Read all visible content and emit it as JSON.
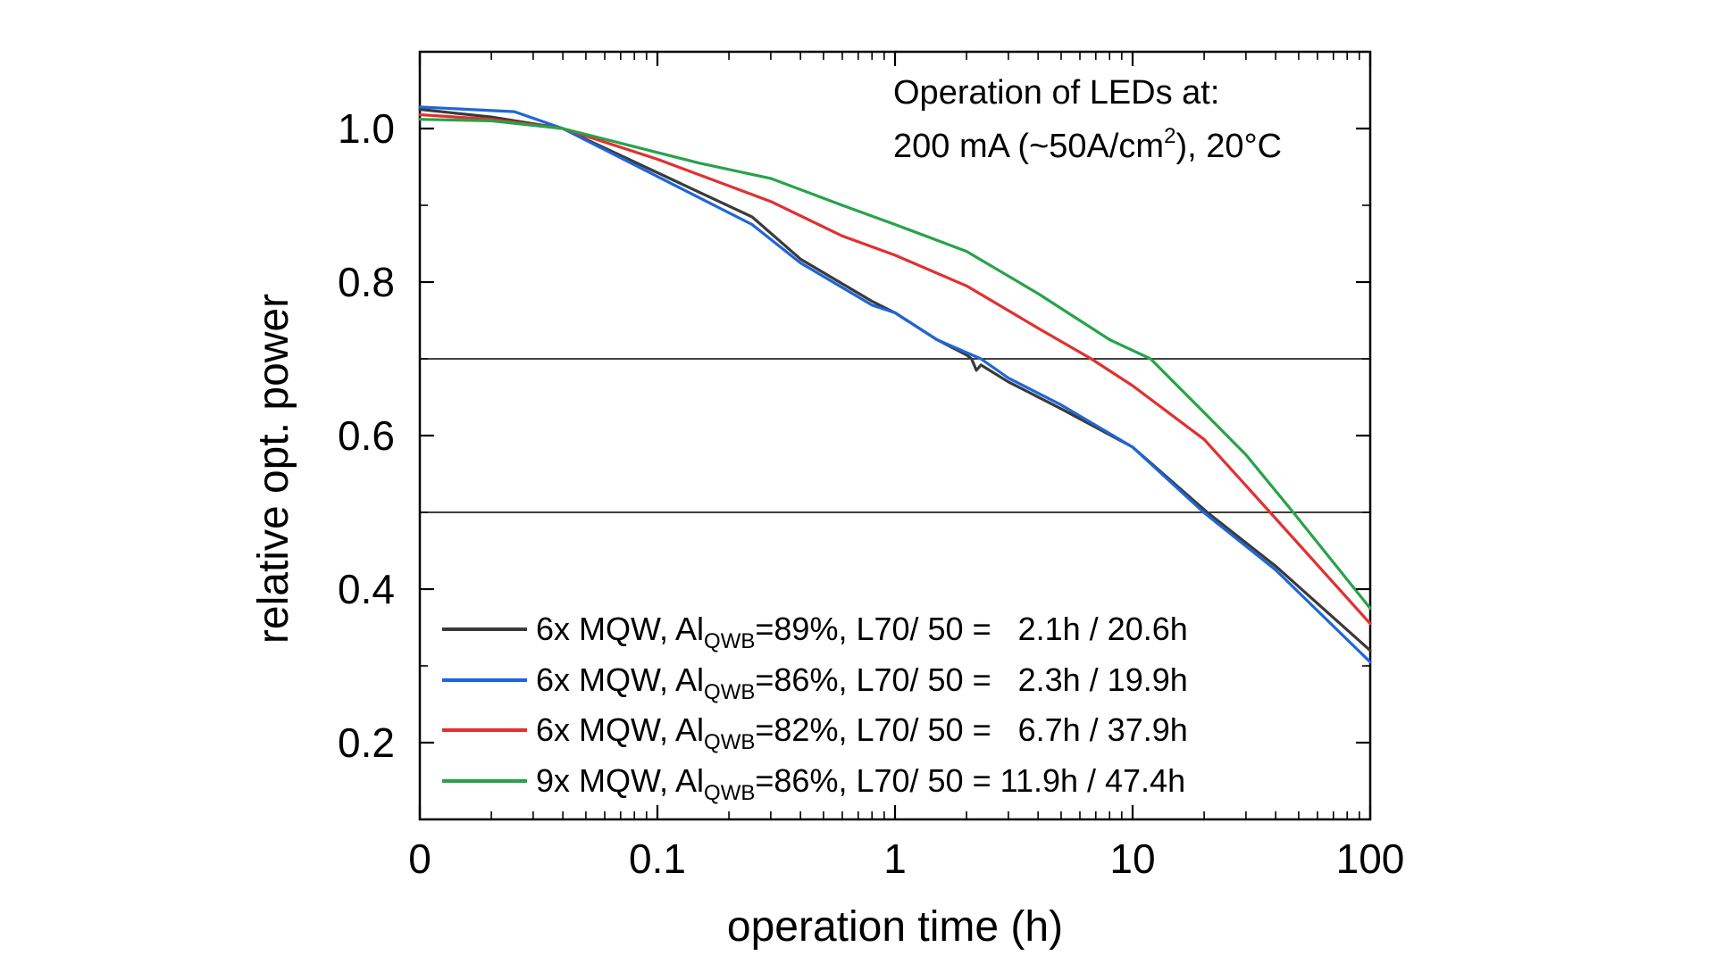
{
  "chart_data": {
    "type": "line",
    "xlabel": "operation time (h)",
    "ylabel": "relative opt. power",
    "xscale": "log (with 0 at left edge)",
    "xticks": [
      "0",
      "0.1",
      "1",
      "10",
      "100"
    ],
    "yticks": [
      "0.2",
      "0.4",
      "0.6",
      "0.8",
      "1.0"
    ],
    "ylim": [
      0.1,
      1.1
    ],
    "grid": false,
    "reference_lines": [
      0.7,
      0.5
    ],
    "annotation": {
      "line1": "Operation of LEDs at:",
      "line2_prefix": "200 mA (~50A/cm",
      "line2_sup": "2",
      "line2_suffix": "), 20°C"
    },
    "legend_position": "bottom-left",
    "series": [
      {
        "color": "#3a3a3a",
        "label_a": "6x MQW, Al",
        "label_sub": "QWB",
        "label_b": "=89%, L70/ 50 =   2.1h / 20.6h",
        "points": [
          [
            0,
            1.025
          ],
          [
            0.02,
            1.015
          ],
          [
            0.04,
            1.0
          ],
          [
            0.25,
            0.885
          ],
          [
            0.4,
            0.83
          ],
          [
            0.8,
            0.775
          ],
          [
            1,
            0.76
          ],
          [
            1.5,
            0.725
          ],
          [
            2,
            0.705
          ],
          [
            2.1,
            0.7
          ],
          [
            2.2,
            0.685
          ],
          [
            2.3,
            0.692
          ],
          [
            3,
            0.67
          ],
          [
            5,
            0.635
          ],
          [
            10,
            0.585
          ],
          [
            20.6,
            0.5
          ],
          [
            40,
            0.43
          ],
          [
            100,
            0.32
          ]
        ]
      },
      {
        "color": "#1f66d6",
        "label_a": "6x MQW, Al",
        "label_sub": "QWB",
        "label_b": "=86%, L70/ 50 =   2.3h / 19.9h",
        "points": [
          [
            0,
            1.028
          ],
          [
            0.025,
            1.022
          ],
          [
            0.04,
            1.0
          ],
          [
            0.25,
            0.875
          ],
          [
            0.4,
            0.825
          ],
          [
            0.8,
            0.77
          ],
          [
            1,
            0.76
          ],
          [
            1.5,
            0.725
          ],
          [
            2.3,
            0.7
          ],
          [
            3,
            0.675
          ],
          [
            5,
            0.64
          ],
          [
            10,
            0.585
          ],
          [
            19.9,
            0.5
          ],
          [
            40,
            0.425
          ],
          [
            100,
            0.305
          ]
        ]
      },
      {
        "color": "#e03131",
        "label_a": "6x MQW, Al",
        "label_sub": "QWB",
        "label_b": "=82%, L70/ 50 =   6.7h / 37.9h",
        "points": [
          [
            0,
            1.018
          ],
          [
            0.02,
            1.012
          ],
          [
            0.04,
            1.0
          ],
          [
            0.1,
            0.96
          ],
          [
            0.3,
            0.905
          ],
          [
            0.6,
            0.86
          ],
          [
            1,
            0.835
          ],
          [
            2,
            0.795
          ],
          [
            4,
            0.74
          ],
          [
            6.7,
            0.7
          ],
          [
            10,
            0.665
          ],
          [
            20,
            0.595
          ],
          [
            37.9,
            0.5
          ],
          [
            100,
            0.355
          ]
        ]
      },
      {
        "color": "#27a34a",
        "label_a": "9x MQW, Al",
        "label_sub": "QWB",
        "label_b": "=86%, L70/ 50 = 11.9h / 47.4h",
        "points": [
          [
            0,
            1.012
          ],
          [
            0.02,
            1.01
          ],
          [
            0.04,
            1.0
          ],
          [
            0.15,
            0.955
          ],
          [
            0.3,
            0.935
          ],
          [
            0.6,
            0.9
          ],
          [
            1,
            0.875
          ],
          [
            2,
            0.84
          ],
          [
            4,
            0.785
          ],
          [
            8,
            0.725
          ],
          [
            11.9,
            0.7
          ],
          [
            20,
            0.63
          ],
          [
            30,
            0.575
          ],
          [
            47.4,
            0.5
          ],
          [
            100,
            0.375
          ]
        ]
      }
    ]
  }
}
